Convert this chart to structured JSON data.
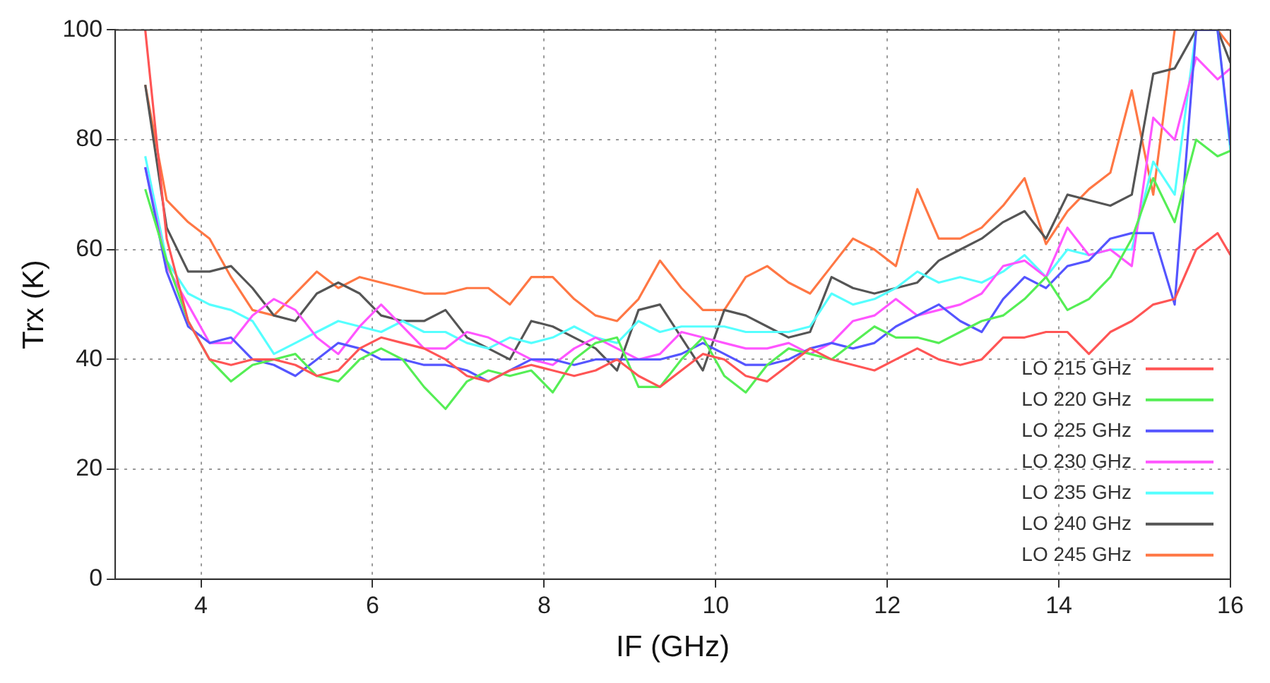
{
  "chart_data": {
    "type": "line",
    "xlabel": "IF (GHz)",
    "ylabel": "Trx (K)",
    "x": [
      3.35,
      3.6,
      3.85,
      4.1,
      4.35,
      4.6,
      4.85,
      5.1,
      5.35,
      5.6,
      5.85,
      6.1,
      6.35,
      6.6,
      6.85,
      7.1,
      7.35,
      7.6,
      7.85,
      8.1,
      8.35,
      8.6,
      8.85,
      9.1,
      9.35,
      9.6,
      9.85,
      10.1,
      10.35,
      10.6,
      10.85,
      11.1,
      11.35,
      11.6,
      11.85,
      12.1,
      12.35,
      12.6,
      12.85,
      13.1,
      13.35,
      13.6,
      13.85,
      14.1,
      14.35,
      14.6,
      14.85,
      15.1,
      15.35,
      15.6,
      15.85,
      16
    ],
    "xlim": [
      3,
      16
    ],
    "xticks": [
      4,
      6,
      8,
      10,
      12,
      14,
      16
    ],
    "ylim": [
      0,
      100
    ],
    "yticks": [
      0,
      20,
      40,
      60,
      80,
      100
    ],
    "grid": true,
    "legend": "bottom right",
    "marker": "none",
    "line_style": "solid",
    "series": [
      {
        "name": "LO 215 GHz",
        "color": "#ff5555",
        "values": [
          100,
          62,
          47,
          40,
          39,
          40,
          40,
          39,
          37,
          38,
          42,
          44,
          43,
          42,
          40,
          37,
          36,
          38,
          39,
          38,
          37,
          38,
          40,
          37,
          35,
          38,
          41,
          40,
          37,
          36,
          39,
          42,
          40,
          39,
          38,
          40,
          42,
          40,
          39,
          40,
          44,
          44,
          45,
          45,
          41,
          45,
          47,
          50,
          51,
          60,
          63,
          59
        ]
      },
      {
        "name": "LO 220 GHz",
        "color": "#55ee55",
        "values": [
          71,
          58,
          47,
          40,
          36,
          39,
          40,
          41,
          37,
          36,
          40,
          42,
          40,
          35,
          31,
          36,
          38,
          37,
          38,
          34,
          40,
          43,
          44,
          35,
          35,
          40,
          44,
          37,
          34,
          39,
          42,
          41,
          40,
          43,
          46,
          44,
          44,
          43,
          45,
          47,
          48,
          51,
          55,
          49,
          51,
          55,
          62,
          73,
          65,
          80,
          77,
          78
        ]
      },
      {
        "name": "LO 225 GHz",
        "color": "#5555ff",
        "values": [
          75,
          56,
          46,
          43,
          44,
          40,
          39,
          37,
          40,
          43,
          42,
          40,
          40,
          39,
          39,
          38,
          36,
          38,
          40,
          40,
          39,
          40,
          40,
          40,
          40,
          41,
          43,
          41,
          39,
          39,
          40,
          42,
          43,
          42,
          43,
          46,
          48,
          50,
          47,
          45,
          51,
          55,
          53,
          57,
          58,
          62,
          63,
          63,
          50,
          100,
          100,
          79
        ]
      },
      {
        "name": "LO 230 GHz",
        "color": "#ff55ff",
        "values": [
          75,
          57,
          50,
          43,
          43,
          48,
          51,
          49,
          44,
          41,
          46,
          50,
          46,
          42,
          42,
          45,
          44,
          42,
          40,
          39,
          42,
          44,
          42,
          40,
          41,
          45,
          44,
          43,
          42,
          42,
          43,
          41,
          43,
          47,
          48,
          51,
          48,
          49,
          50,
          52,
          57,
          58,
          55,
          64,
          59,
          60,
          57,
          84,
          80,
          95,
          91,
          93
        ]
      },
      {
        "name": "LO 235 GHz",
        "color": "#55ffff",
        "values": [
          77,
          58,
          52,
          50,
          49,
          47,
          41,
          43,
          45,
          47,
          46,
          45,
          47,
          45,
          45,
          43,
          42,
          44,
          43,
          44,
          46,
          44,
          43,
          47,
          45,
          46,
          46,
          46,
          45,
          45,
          45,
          46,
          52,
          50,
          51,
          53,
          56,
          54,
          55,
          54,
          56,
          59,
          55,
          60,
          59,
          60,
          60,
          76,
          70,
          100,
          100,
          78
        ]
      },
      {
        "name": "LO 240 GHz",
        "color": "#555555",
        "values": [
          90,
          64,
          56,
          56,
          57,
          53,
          48,
          47,
          52,
          54,
          52,
          48,
          47,
          47,
          49,
          44,
          42,
          40,
          47,
          46,
          44,
          42,
          38,
          49,
          50,
          44,
          38,
          49,
          48,
          46,
          44,
          45,
          55,
          53,
          52,
          53,
          54,
          58,
          60,
          62,
          65,
          67,
          62,
          70,
          69,
          68,
          70,
          92,
          93,
          100,
          100,
          94
        ]
      },
      {
        "name": "LO 245 GHz",
        "color": "#ff7744",
        "values": [
          90,
          69,
          65,
          62,
          55,
          49,
          48,
          52,
          56,
          53,
          55,
          54,
          53,
          52,
          52,
          53,
          53,
          50,
          55,
          55,
          51,
          48,
          47,
          51,
          58,
          53,
          49,
          49,
          55,
          57,
          54,
          52,
          57,
          62,
          60,
          57,
          71,
          62,
          62,
          64,
          68,
          73,
          61,
          67,
          71,
          74,
          89,
          70,
          100,
          null,
          100,
          97
        ]
      }
    ]
  }
}
